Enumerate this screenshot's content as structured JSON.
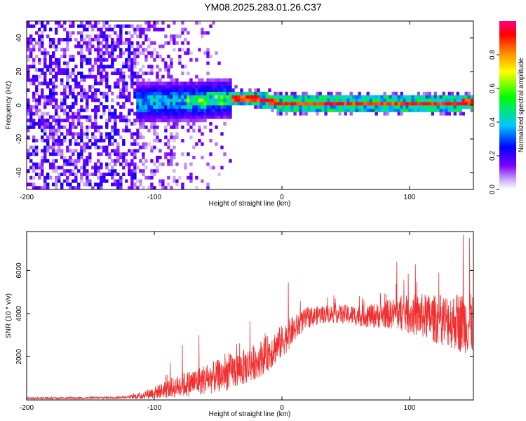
{
  "title": "YM08.2025.283.01.26.C37",
  "chart_data": [
    {
      "type": "heatmap",
      "name": "spectrogram",
      "xlabel": "Height of straight line (km)",
      "ylabel": "Frequency (Hz)",
      "xlim": [
        -200,
        150
      ],
      "ylim": [
        -50,
        50
      ],
      "xticks": [
        -200,
        -100,
        0,
        100
      ],
      "xtick_labels": [
        "-200",
        "-100",
        "0",
        "100"
      ],
      "yticks": [
        -40,
        -20,
        0,
        20,
        40
      ],
      "ytick_labels": [
        "-40",
        "-20",
        "0",
        "20",
        "40"
      ],
      "colorbar": {
        "label": "Normalized spectral amplitude",
        "range": [
          0,
          1
        ],
        "ticks": [
          0.0,
          0.2,
          0.4,
          0.6,
          0.8
        ],
        "tick_labels": [
          "0.0",
          "0.2",
          "0.4",
          "0.6",
          "0.8"
        ],
        "colors": [
          "#ffffff",
          "#c7a8f5",
          "#8000ff",
          "#0000ff",
          "#00c8ff",
          "#00ff00",
          "#ffff00",
          "#ff8000",
          "#ff0000",
          "#ff0080"
        ]
      },
      "features": [
        {
          "region": "x -200 to -115 km",
          "description": "broadband noise, amplitude ~0.1-0.3"
        },
        {
          "region": "x -115 to -40 km",
          "description": "signal emerging near 0 Hz, spread +-10 Hz, amplitude ~0.3-0.5"
        },
        {
          "region": "x -40 to 150 km",
          "description": "narrow line near 0 to 3 Hz, amplitude ~0.8-1.0"
        }
      ],
      "ridge": {
        "x": [
          -200,
          -120,
          -100,
          -60,
          -40,
          -30,
          -20,
          -10,
          0,
          20,
          40,
          60,
          80,
          100,
          120,
          140,
          150
        ],
        "freq": [
          0,
          0,
          1,
          2,
          3,
          3.5,
          3,
          1,
          0,
          0,
          0,
          0,
          0,
          0,
          0,
          0.5,
          1
        ]
      }
    },
    {
      "type": "line",
      "name": "snr",
      "xlabel": "Height of straight line (km)",
      "ylabel": "SNR (10 * v/v)",
      "xlim": [
        -200,
        150
      ],
      "ylim": [
        0,
        7800
      ],
      "xticks": [
        -200,
        -100,
        0,
        100
      ],
      "xtick_labels": [
        "-200",
        "-100",
        "0",
        "100"
      ],
      "yticks": [
        2000,
        4000,
        6000
      ],
      "ytick_labels": [
        "2000",
        "4000",
        "6000"
      ],
      "color": "#f03030",
      "series": [
        {
          "name": "SNR",
          "x": [
            -200,
            -180,
            -160,
            -140,
            -120,
            -110,
            -100,
            -90,
            -80,
            -70,
            -60,
            -50,
            -40,
            -30,
            -20,
            -10,
            0,
            10,
            20,
            30,
            40,
            50,
            60,
            70,
            80,
            90,
            100,
            110,
            120,
            130,
            140,
            150
          ],
          "mean": [
            80,
            80,
            90,
            100,
            130,
            200,
            350,
            500,
            650,
            800,
            950,
            1100,
            1300,
            1500,
            1800,
            2200,
            2700,
            3300,
            3800,
            3950,
            4000,
            3950,
            3900,
            3900,
            3950,
            4000,
            3950,
            3900,
            3750,
            3700,
            3600,
            3500
          ],
          "spread": [
            60,
            60,
            60,
            70,
            100,
            250,
            400,
            600,
            800,
            900,
            1000,
            1100,
            1200,
            1200,
            1200,
            1200,
            1100,
            900,
            700,
            600,
            600,
            650,
            700,
            800,
            900,
            1100,
            1300,
            1500,
            1600,
            1800,
            2000,
            2000
          ],
          "spikes": [
            {
              "x": -78,
              "y": 2550
            },
            {
              "x": -65,
              "y": 3000
            },
            {
              "x": -25,
              "y": 3650
            },
            {
              "x": 5,
              "y": 5450
            },
            {
              "x": 90,
              "y": 6400
            },
            {
              "x": 142,
              "y": 7650
            },
            {
              "x": 147,
              "y": 7500
            }
          ]
        }
      ]
    }
  ]
}
